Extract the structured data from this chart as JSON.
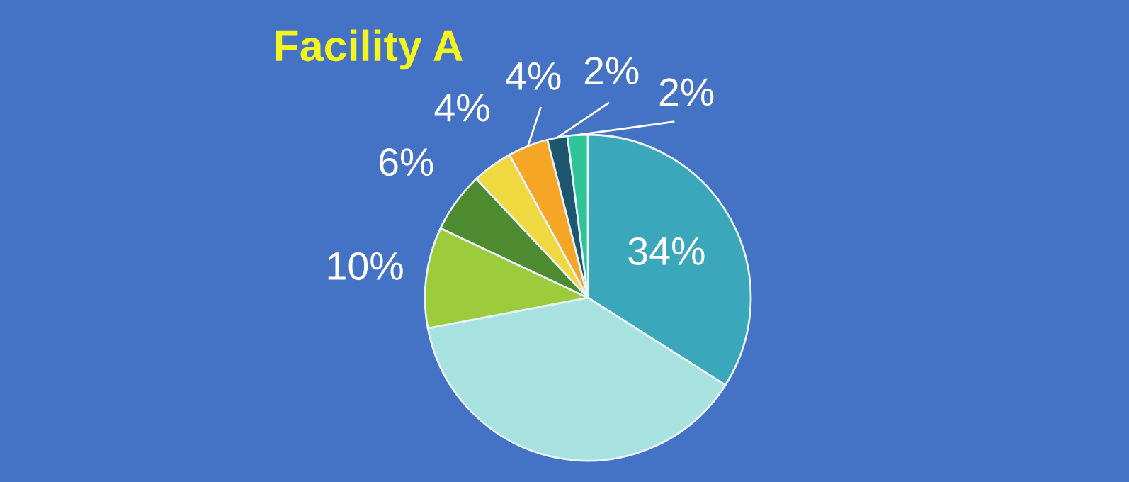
{
  "chart_data": {
    "type": "pie",
    "title": "Facility A",
    "categories": [
      null,
      null,
      null,
      null,
      null,
      null,
      null,
      null
    ],
    "values": [
      34,
      38,
      10,
      6,
      4,
      4,
      2,
      2
    ],
    "colors": [
      "#3aa8ba",
      "#a8e2e0",
      "#9ccc3c",
      "#4e8a30",
      "#f0d840",
      "#f4a624",
      "#1e5670",
      "#2ec49a"
    ],
    "value_labels": [
      "34%",
      null,
      "10%",
      "6%",
      "4%",
      "4%",
      "2%",
      "2%"
    ]
  }
}
